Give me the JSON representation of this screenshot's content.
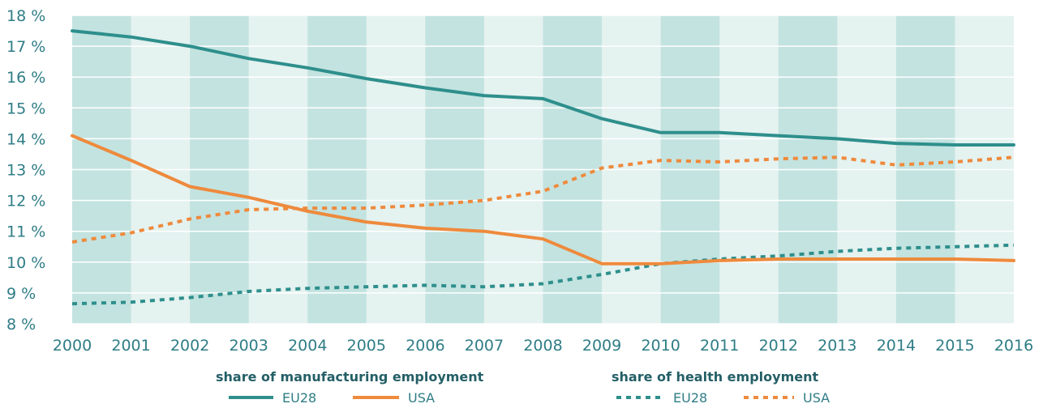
{
  "chart_data": {
    "type": "line",
    "x": [
      "2000",
      "2001",
      "2002",
      "2003",
      "2004",
      "2005",
      "2006",
      "2007",
      "2008",
      "2009",
      "2010",
      "2011",
      "2012",
      "2013",
      "2014",
      "2015",
      "2016"
    ],
    "ylim": [
      8,
      18
    ],
    "y_ticks": [
      8,
      9,
      10,
      11,
      12,
      13,
      14,
      15,
      16,
      17,
      18
    ],
    "y_tick_labels": [
      "8 %",
      "9 %",
      "10 %",
      "11 %",
      "12 %",
      "13 %",
      "14 %",
      "15 %",
      "16 %",
      "17 %",
      "18 %"
    ],
    "grid": true,
    "legend_position": "bottom",
    "colors": {
      "eu28": "#2e8f8c",
      "usa": "#ee8a3c",
      "band_dark": "#c3e3e0",
      "band_light": "#e4f2f0",
      "grid": "#ffffff"
    },
    "series": [
      {
        "key": "manuf_eu28",
        "group": "manufacturing",
        "name": "EU28",
        "style": "solid",
        "color": "#2e8f8c",
        "values": [
          17.5,
          17.3,
          17.0,
          16.6,
          16.3,
          15.95,
          15.65,
          15.4,
          15.3,
          14.65,
          14.2,
          14.2,
          14.1,
          14.0,
          13.85,
          13.8,
          13.8
        ]
      },
      {
        "key": "manuf_usa",
        "group": "manufacturing",
        "name": "USA",
        "style": "solid",
        "color": "#ee8a3c",
        "values": [
          14.1,
          13.3,
          12.45,
          12.1,
          11.65,
          11.3,
          11.1,
          11.0,
          10.75,
          9.95,
          9.95,
          10.05,
          10.1,
          10.1,
          10.1,
          10.1,
          10.05
        ]
      },
      {
        "key": "health_eu28",
        "group": "health",
        "name": "EU28",
        "style": "dashed",
        "color": "#2e8f8c",
        "values": [
          8.65,
          8.7,
          8.85,
          9.05,
          9.15,
          9.2,
          9.25,
          9.2,
          9.3,
          9.6,
          9.95,
          10.1,
          10.2,
          10.35,
          10.45,
          10.5,
          10.55
        ]
      },
      {
        "key": "health_usa",
        "group": "health",
        "name": "USA",
        "style": "dashed",
        "color": "#ee8a3c",
        "values": [
          10.65,
          10.95,
          11.4,
          11.7,
          11.75,
          11.75,
          11.85,
          12.0,
          12.3,
          13.05,
          13.3,
          13.25,
          13.35,
          13.4,
          13.15,
          13.25,
          13.4
        ]
      }
    ],
    "legend": {
      "groups": [
        {
          "title": "share of manufacturing employment",
          "items": [
            {
              "series": "manuf_eu28",
              "label": "EU28"
            },
            {
              "series": "manuf_usa",
              "label": "USA"
            }
          ]
        },
        {
          "title": "share of health employment",
          "items": [
            {
              "series": "health_eu28",
              "label": "EU28"
            },
            {
              "series": "health_usa",
              "label": "USA"
            }
          ]
        }
      ]
    }
  }
}
